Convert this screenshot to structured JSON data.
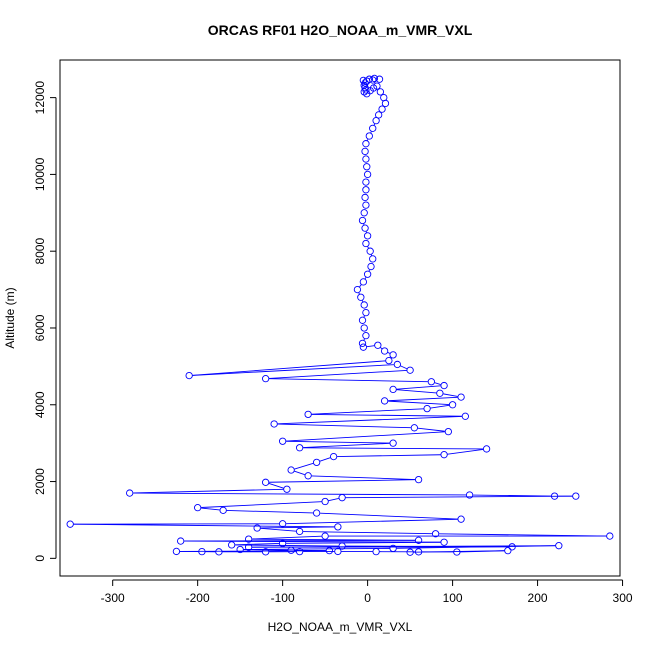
{
  "chart_data": {
    "type": "line",
    "title": "ORCAS RF01 H2O_NOAA_m_VMR_VXL",
    "xlabel": "H2O_NOAA_m_VMR_VXL",
    "ylabel": "Altitude (m)",
    "xlim": [
      -362,
      297
    ],
    "ylim": [
      -460,
      12980
    ],
    "xticks": [
      -300,
      -200,
      -100,
      0,
      100,
      200,
      300
    ],
    "yticks": [
      0,
      2000,
      4000,
      6000,
      8000,
      10000,
      12000
    ],
    "colors": {
      "series": "#0000ff",
      "axes": "#000000"
    },
    "marker": "open-circle",
    "series": [
      {
        "name": "",
        "points": [
          [
            -5,
            12450
          ],
          [
            2,
            12480
          ],
          [
            8,
            12500
          ],
          [
            14,
            12480
          ],
          [
            6,
            12460
          ],
          [
            -1,
            12430
          ],
          [
            -3,
            12380
          ],
          [
            -4,
            12320
          ],
          [
            -3,
            12260
          ],
          [
            -2,
            12200
          ],
          [
            -4,
            12150
          ],
          [
            -1,
            12100
          ],
          [
            3,
            12180
          ],
          [
            7,
            12250
          ],
          [
            11,
            12300
          ],
          [
            15,
            12150
          ],
          [
            19,
            12000
          ],
          [
            21,
            11850
          ],
          [
            17,
            11700
          ],
          [
            13,
            11550
          ],
          [
            10,
            11400
          ],
          [
            6,
            11200
          ],
          [
            2,
            11000
          ],
          [
            -2,
            10800
          ],
          [
            -3,
            10600
          ],
          [
            -2,
            10400
          ],
          [
            -1,
            10200
          ],
          [
            0,
            10000
          ],
          [
            -2,
            9800
          ],
          [
            -2,
            9600
          ],
          [
            -3,
            9400
          ],
          [
            -2,
            9200
          ],
          [
            -4,
            9000
          ],
          [
            -6,
            8800
          ],
          [
            -3,
            8600
          ],
          [
            0,
            8400
          ],
          [
            -2,
            8200
          ],
          [
            3,
            8000
          ],
          [
            6,
            7800
          ],
          [
            4,
            7600
          ],
          [
            0,
            7400
          ],
          [
            -5,
            7200
          ],
          [
            -12,
            7000
          ],
          [
            -8,
            6800
          ],
          [
            -4,
            6600
          ],
          [
            -2,
            6400
          ],
          [
            -6,
            6200
          ],
          [
            -4,
            6000
          ],
          [
            -2,
            5800
          ],
          [
            -6,
            5600
          ],
          [
            -5,
            5500
          ],
          [
            12,
            5550
          ],
          [
            20,
            5400
          ],
          [
            30,
            5300
          ],
          [
            25,
            5150
          ],
          [
            -210,
            4760
          ],
          [
            35,
            5050
          ],
          [
            50,
            4900
          ],
          [
            -120,
            4680
          ],
          [
            75,
            4600
          ],
          [
            90,
            4500
          ],
          [
            30,
            4400
          ],
          [
            85,
            4300
          ],
          [
            110,
            4200
          ],
          [
            20,
            4100
          ],
          [
            100,
            4000
          ],
          [
            70,
            3900
          ],
          [
            -70,
            3750
          ],
          [
            115,
            3700
          ],
          [
            -110,
            3500
          ],
          [
            55,
            3400
          ],
          [
            95,
            3300
          ],
          [
            -100,
            3050
          ],
          [
            30,
            3000
          ],
          [
            -80,
            2880
          ],
          [
            140,
            2850
          ],
          [
            90,
            2700
          ],
          [
            -40,
            2650
          ],
          [
            -60,
            2500
          ],
          [
            -90,
            2300
          ],
          [
            -70,
            2150
          ],
          [
            60,
            2050
          ],
          [
            -120,
            1980
          ],
          [
            -95,
            1800
          ],
          [
            -280,
            1700
          ],
          [
            120,
            1650
          ],
          [
            220,
            1620
          ],
          [
            245,
            1620
          ],
          [
            -30,
            1580
          ],
          [
            -50,
            1480
          ],
          [
            -200,
            1320
          ],
          [
            -170,
            1250
          ],
          [
            -60,
            1180
          ],
          [
            110,
            1020
          ],
          [
            -100,
            900
          ],
          [
            -350,
            890
          ],
          [
            -35,
            820
          ],
          [
            -130,
            790
          ],
          [
            -80,
            700
          ],
          [
            80,
            640
          ],
          [
            285,
            580
          ],
          [
            -50,
            580
          ],
          [
            -140,
            500
          ],
          [
            60,
            470
          ],
          [
            -220,
            450
          ],
          [
            90,
            420
          ],
          [
            -100,
            390
          ],
          [
            -160,
            350
          ],
          [
            -30,
            320
          ],
          [
            170,
            300
          ],
          [
            -140,
            290
          ],
          [
            225,
            330
          ],
          [
            30,
            260
          ],
          [
            -150,
            230
          ],
          [
            -90,
            210
          ],
          [
            -45,
            200
          ],
          [
            -225,
            180
          ],
          [
            -195,
            175
          ],
          [
            -175,
            170
          ],
          [
            -120,
            170
          ],
          [
            -80,
            175
          ],
          [
            -35,
            180
          ],
          [
            10,
            175
          ],
          [
            60,
            170
          ],
          [
            105,
            165
          ],
          [
            165,
            200
          ],
          [
            50,
            160
          ]
        ]
      }
    ]
  }
}
